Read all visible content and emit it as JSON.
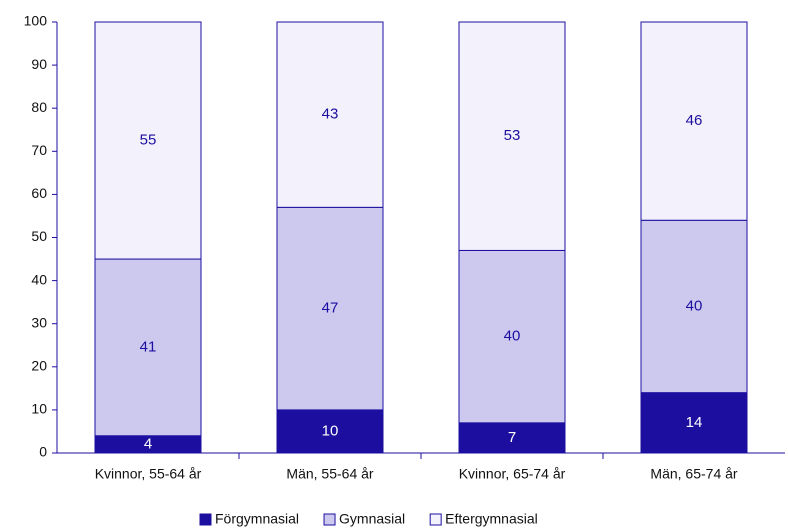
{
  "chart_data": {
    "type": "stacked_bar",
    "categories": [
      "Kvinnor, 55-64 år",
      "Män, 55-64 år",
      "Kvinnor, 65-74 år",
      "Män, 65-74 år"
    ],
    "series": [
      {
        "name": "Förgymnasial",
        "color": "#1c0fa0",
        "values": [
          4,
          10,
          7,
          14
        ]
      },
      {
        "name": "Gymnasial",
        "color": "#ccc8ee",
        "values": [
          41,
          47,
          40,
          40
        ]
      },
      {
        "name": "Eftergymnasial",
        "color": "#f3f1fb",
        "values": [
          55,
          43,
          53,
          46
        ]
      }
    ],
    "ylim": [
      0,
      100
    ],
    "yticks": [
      0,
      10,
      20,
      30,
      40,
      50,
      60,
      70,
      80,
      90,
      100
    ],
    "grid": false,
    "legend": "bottom"
  }
}
